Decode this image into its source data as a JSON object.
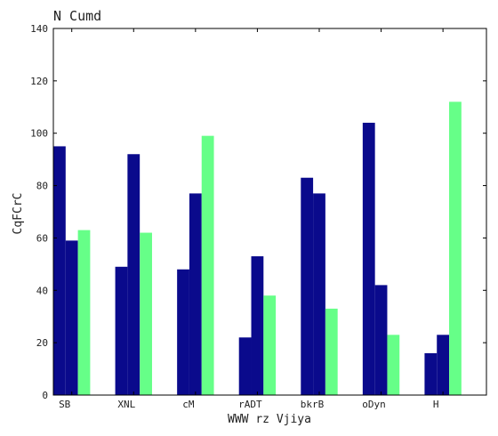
{
  "chart_data": {
    "type": "bar",
    "title": "N  Cumd",
    "xlabel": "WWW  rz Vjiya",
    "ylabel": "CqFCrC",
    "categories": [
      "SB",
      "XNL",
      "cM",
      "rADT",
      "bkrB",
      "oDyn",
      "H"
    ],
    "series": [
      {
        "values": [
          95,
          49,
          48,
          22,
          83,
          104,
          16
        ],
        "color": "#0a0a8c"
      },
      {
        "values": [
          59,
          92,
          77,
          53,
          77,
          42,
          23
        ],
        "color": "#0a0a8c"
      },
      {
        "values": [
          63,
          62,
          99,
          38,
          33,
          23,
          112
        ],
        "color": "#66ff88"
      }
    ],
    "ylim": [
      0,
      140
    ],
    "yticks": [
      0,
      20,
      40,
      60,
      80,
      100,
      120,
      140
    ],
    "grid": false,
    "legend": "none"
  }
}
